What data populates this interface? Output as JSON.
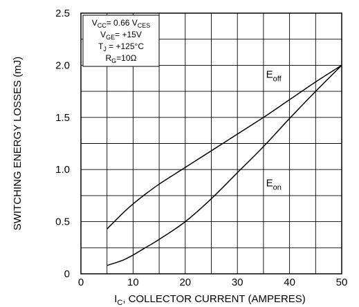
{
  "chart_data": {
    "type": "line",
    "xlabel": {
      "main": "I",
      "sub": "C",
      "rest": ", COLLECTOR CURRENT (AMPERES)"
    },
    "ylabel": "SWITCHING ENERGY LOSSES (mJ)",
    "xlim": [
      0,
      50
    ],
    "ylim": [
      0,
      2.5
    ],
    "x_ticks": [
      {
        "value": 0,
        "label": "0"
      },
      {
        "value": 10,
        "label": "10"
      },
      {
        "value": 20,
        "label": "20"
      },
      {
        "value": 30,
        "label": "30"
      },
      {
        "value": 40,
        "label": "40"
      },
      {
        "value": 50,
        "label": "50"
      }
    ],
    "y_ticks": [
      {
        "value": 0,
        "label": "0"
      },
      {
        "value": 0.5,
        "label": "0.5"
      },
      {
        "value": 1.0,
        "label": "1.0"
      },
      {
        "value": 1.5,
        "label": "1.5"
      },
      {
        "value": 2.0,
        "label": "2.0"
      },
      {
        "value": 2.5,
        "label": "2.5"
      }
    ],
    "grid": true,
    "conditions": [
      {
        "main": "V",
        "sub": "CC",
        "rest": "= 0.66 V",
        "sub2": "CES"
      },
      {
        "main": "V",
        "sub": "GE",
        "rest": "= +15V",
        "sub2": ""
      },
      {
        "main": "T",
        "sub": "J",
        "rest": " = +125°C",
        "sub2": ""
      },
      {
        "main": "R",
        "sub": "G",
        "rest": "=10Ω",
        "sub2": ""
      }
    ],
    "conditions_position": "top-left",
    "series": [
      {
        "name": "Eoff",
        "label_main": "E",
        "label_sub": "off",
        "label_at": {
          "x": 35.5,
          "y": 1.88
        },
        "color": "#000000",
        "points": [
          [
            5,
            0.43
          ],
          [
            8,
            0.58
          ],
          [
            10,
            0.67
          ],
          [
            12,
            0.75
          ],
          [
            15,
            0.86
          ],
          [
            20,
            1.02
          ],
          [
            25,
            1.18
          ],
          [
            30,
            1.34
          ],
          [
            35,
            1.5
          ],
          [
            40,
            1.67
          ],
          [
            45,
            1.84
          ],
          [
            50,
            2.0
          ]
        ]
      },
      {
        "name": "Eon",
        "label_main": "E",
        "label_sub": "on",
        "label_at": {
          "x": 35.5,
          "y": 0.84
        },
        "color": "#000000",
        "points": [
          [
            5,
            0.08
          ],
          [
            8,
            0.13
          ],
          [
            10,
            0.18
          ],
          [
            12,
            0.24
          ],
          [
            15,
            0.33
          ],
          [
            20,
            0.5
          ],
          [
            25,
            0.72
          ],
          [
            30,
            0.97
          ],
          [
            35,
            1.22
          ],
          [
            40,
            1.49
          ],
          [
            45,
            1.75
          ],
          [
            50,
            2.0
          ]
        ]
      }
    ]
  }
}
